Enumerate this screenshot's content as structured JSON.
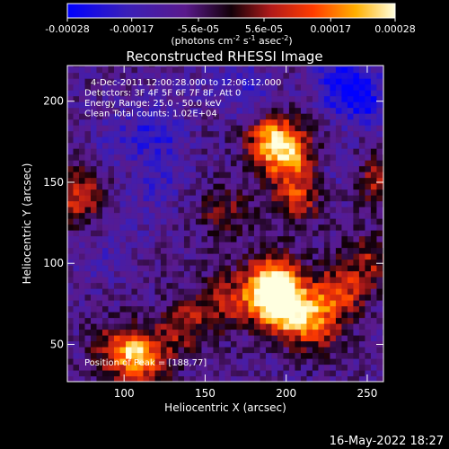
{
  "chart_data": {
    "type": "heatmap",
    "title": "Reconstructed RHESSI Image",
    "xlabel": "Heliocentric X (arcsec)",
    "ylabel": "Heliocentric Y (arcsec)",
    "xlim": [
      65,
      260
    ],
    "ylim": [
      27,
      222
    ],
    "xticks": [
      100,
      150,
      200,
      250
    ],
    "yticks": [
      50,
      100,
      150,
      200
    ],
    "colorbar": {
      "min": -0.00028,
      "max": 0.00028,
      "ticks": [
        {
          "value": -0.00028,
          "label": "-0.00028"
        },
        {
          "value": -0.00017,
          "label": "-0.00017"
        },
        {
          "value": -5.6e-05,
          "label": "-5.6e-05"
        },
        {
          "value": 5.6e-05,
          "label": "5.6e-05"
        },
        {
          "value": 0.00017,
          "label": "0.00017"
        },
        {
          "value": 0.00028,
          "label": "0.00028"
        }
      ],
      "unit_base": "(photons cm",
      "unit_exp1": "-2",
      "unit_mid1": " s",
      "unit_exp2": "-1",
      "unit_mid2": " asec",
      "unit_exp3": "-2",
      "unit_end": ")"
    },
    "annotations": [
      "4-Dec-2011 12:00:28.000 to 12:06:12.000",
      "Detectors: 3F 4F 5F 6F 7F 8F, Att 0",
      "Energy Range: 25.0 - 50.0 keV",
      "Clean      Total counts: 1.02E+04"
    ],
    "peak_label": "Position of Peak = [188,77]",
    "peak": [
      188,
      77
    ],
    "hot_regions": [
      {
        "x": 190,
        "y": 175,
        "value": 0.00025
      },
      {
        "x": 200,
        "y": 165,
        "value": 0.00022
      },
      {
        "x": 205,
        "y": 140,
        "value": 0.00018
      },
      {
        "x": 160,
        "y": 130,
        "value": 0.00012
      },
      {
        "x": 190,
        "y": 90,
        "value": 0.00024
      },
      {
        "x": 200,
        "y": 70,
        "value": 0.00026
      },
      {
        "x": 188,
        "y": 77,
        "value": 0.00028
      },
      {
        "x": 230,
        "y": 80,
        "value": 0.00021
      },
      {
        "x": 215,
        "y": 60,
        "value": 0.00019
      },
      {
        "x": 160,
        "y": 75,
        "value": 0.00016
      },
      {
        "x": 135,
        "y": 60,
        "value": 0.00015
      },
      {
        "x": 110,
        "y": 40,
        "value": 0.00024
      },
      {
        "x": 95,
        "y": 45,
        "value": 0.00018
      },
      {
        "x": 70,
        "y": 140,
        "value": 0.0002
      },
      {
        "x": 250,
        "y": 100,
        "value": 0.00014
      },
      {
        "x": 255,
        "y": 150,
        "value": 0.00015
      }
    ],
    "cold_regions": [
      {
        "x": 245,
        "y": 200,
        "value": -0.00026
      },
      {
        "x": 230,
        "y": 210,
        "value": -0.00022
      },
      {
        "x": 175,
        "y": 205,
        "value": -0.00018
      },
      {
        "x": 120,
        "y": 180,
        "value": -0.0002
      },
      {
        "x": 95,
        "y": 175,
        "value": -0.00016
      },
      {
        "x": 120,
        "y": 150,
        "value": -0.00017
      },
      {
        "x": 85,
        "y": 100,
        "value": -0.00014
      },
      {
        "x": 230,
        "y": 155,
        "value": -0.00015
      },
      {
        "x": 150,
        "y": 210,
        "value": -0.00012
      },
      {
        "x": 100,
        "y": 125,
        "value": -0.00013
      }
    ]
  },
  "footer": {
    "timestamp": "16-May-2022 18:27"
  }
}
